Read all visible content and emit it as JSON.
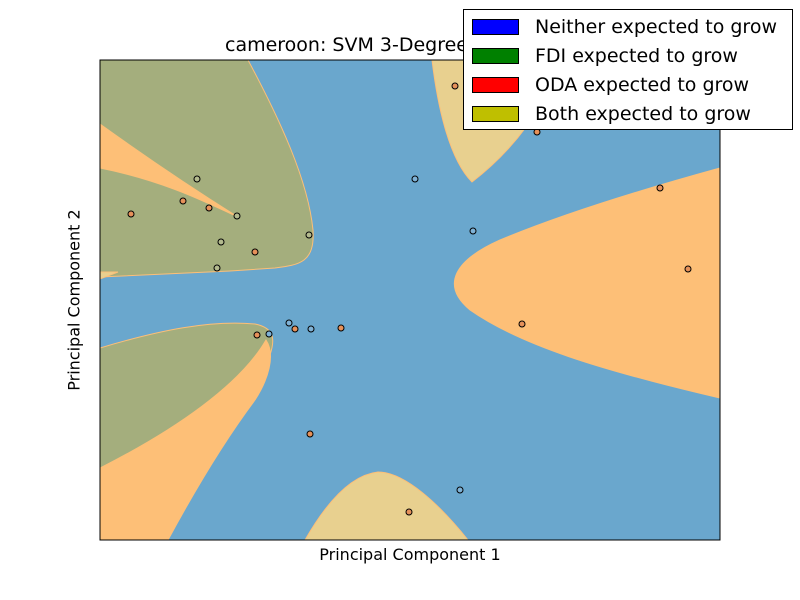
{
  "chart_data": {
    "type": "scatter",
    "title": "cameroon: SVM 3-Degree",
    "xlabel": "Principal Component 1",
    "ylabel": "Principal Component 2",
    "xlim": [
      0,
      620
    ],
    "ylim": [
      0,
      480
    ],
    "ticks_shown": false,
    "grid": false,
    "legend_placement": "top-right",
    "legend": [
      {
        "label": "Neither expected to grow",
        "color": "#0000ff"
      },
      {
        "label": "FDI expected to grow",
        "color": "#008000"
      },
      {
        "label": "ODA expected to grow",
        "color": "#ff0000"
      },
      {
        "label": "Both expected to grow",
        "color": "#bfbf00"
      }
    ],
    "regions": {
      "neither": "#6aa7cd",
      "fdi": "#a4ae7d",
      "oda": "#fdbf77",
      "both": "#e8d08f"
    },
    "points": [
      {
        "x": 355,
        "y": 454,
        "class": "oda"
      },
      {
        "x": 437,
        "y": 408,
        "class": "oda"
      },
      {
        "x": 315,
        "y": 361,
        "class": "neither"
      },
      {
        "x": 97,
        "y": 361,
        "class": "fdi"
      },
      {
        "x": 83,
        "y": 339,
        "class": "oda"
      },
      {
        "x": 109,
        "y": 332,
        "class": "oda"
      },
      {
        "x": 137,
        "y": 324,
        "class": "fdi"
      },
      {
        "x": 31,
        "y": 326,
        "class": "oda"
      },
      {
        "x": 560,
        "y": 352,
        "class": "oda"
      },
      {
        "x": 373,
        "y": 309,
        "class": "neither"
      },
      {
        "x": 209,
        "y": 305,
        "class": "fdi"
      },
      {
        "x": 121,
        "y": 298,
        "class": "fdi"
      },
      {
        "x": 155,
        "y": 288,
        "class": "oda"
      },
      {
        "x": 117,
        "y": 272,
        "class": "fdi"
      },
      {
        "x": 588,
        "y": 271,
        "class": "oda"
      },
      {
        "x": 189,
        "y": 217,
        "class": "neither"
      },
      {
        "x": 195,
        "y": 211,
        "class": "oda"
      },
      {
        "x": 211,
        "y": 211,
        "class": "neither"
      },
      {
        "x": 241,
        "y": 212,
        "class": "oda"
      },
      {
        "x": 169,
        "y": 206,
        "class": "neither"
      },
      {
        "x": 157,
        "y": 205,
        "class": "oda"
      },
      {
        "x": 422,
        "y": 216,
        "class": "oda"
      },
      {
        "x": 210,
        "y": 106,
        "class": "oda"
      },
      {
        "x": 360,
        "y": 50,
        "class": "neither"
      },
      {
        "x": 309,
        "y": 28,
        "class": "oda"
      }
    ]
  }
}
